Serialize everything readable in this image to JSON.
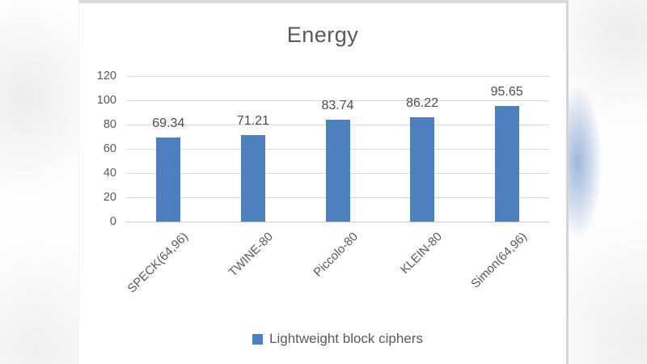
{
  "chart_data": {
    "type": "bar",
    "title": "Energy",
    "categories": [
      "SPECK(64,96)",
      "TWINE-80",
      "Piccolo-80",
      "KLEIN-80",
      "Simon(64,96)"
    ],
    "values": [
      69.34,
      71.21,
      83.74,
      86.22,
      95.65
    ],
    "data_labels": [
      "69.34",
      "71.21",
      "83.74",
      "86.22",
      "95.65"
    ],
    "series_name": "Lightweight block ciphers",
    "xlabel": "",
    "ylabel": "",
    "ylim": [
      0,
      120
    ],
    "yticks": [
      0,
      20,
      40,
      60,
      80,
      100,
      120
    ],
    "grid": true,
    "legend_position": "bottom",
    "bar_color": "#4e80bf",
    "gridline_color": "#d9d9d9",
    "axis_text_color": "#595959",
    "title_color": "#595959"
  }
}
